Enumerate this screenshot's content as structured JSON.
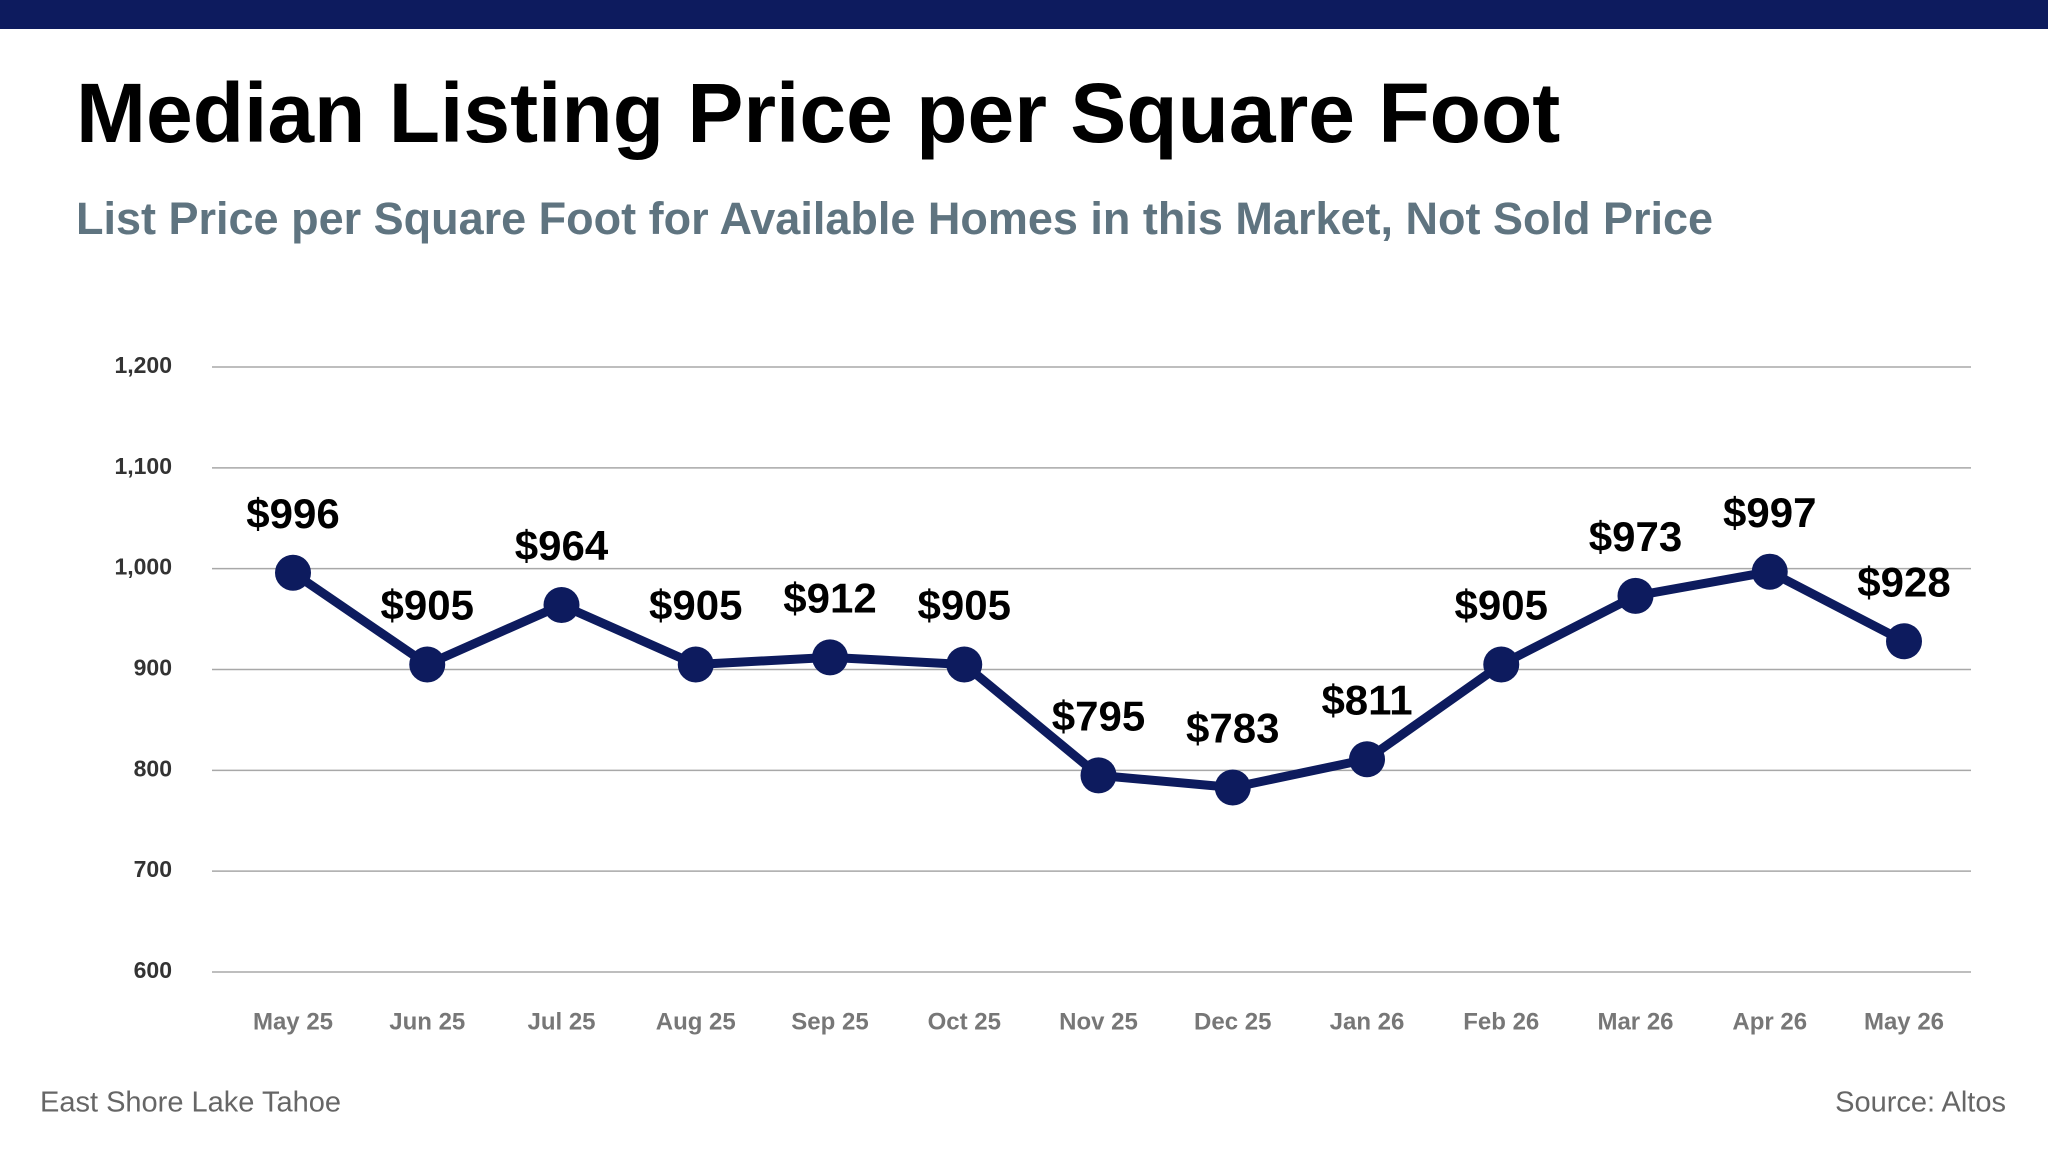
{
  "chart_data": {
    "type": "line",
    "title": "Median Listing Price per Square Foot",
    "subtitle": "List Price per Square Foot for Available Homes in this Market, Not Sold Price",
    "categories": [
      "May 25",
      "Jun 25",
      "Jul 25",
      "Aug 25",
      "Sep 25",
      "Oct 25",
      "Nov 25",
      "Dec 25",
      "Jan 26",
      "Feb 26",
      "Mar 26",
      "Apr 26",
      "May 26"
    ],
    "values": [
      996,
      905,
      964,
      905,
      912,
      905,
      795,
      783,
      811,
      905,
      973,
      997,
      928
    ],
    "value_labels": [
      "$996",
      "$905",
      "$964",
      "$905",
      "$912",
      "$905",
      "$795",
      "$783",
      "$811",
      "$905",
      "$973",
      "$997",
      "$928"
    ],
    "color": "#0d1b5e",
    "ylim": [
      600,
      1200
    ],
    "yticks": [
      600,
      700,
      800,
      900,
      {
        "value": 1000,
        "label": "1,000"
      },
      {
        "value": 1100,
        "label": "1,100"
      },
      {
        "value": 1200,
        "label": "1,200"
      }
    ],
    "grid": true
  },
  "footer": {
    "left": "East Shore Lake Tahoe",
    "right": "Source: Altos"
  }
}
